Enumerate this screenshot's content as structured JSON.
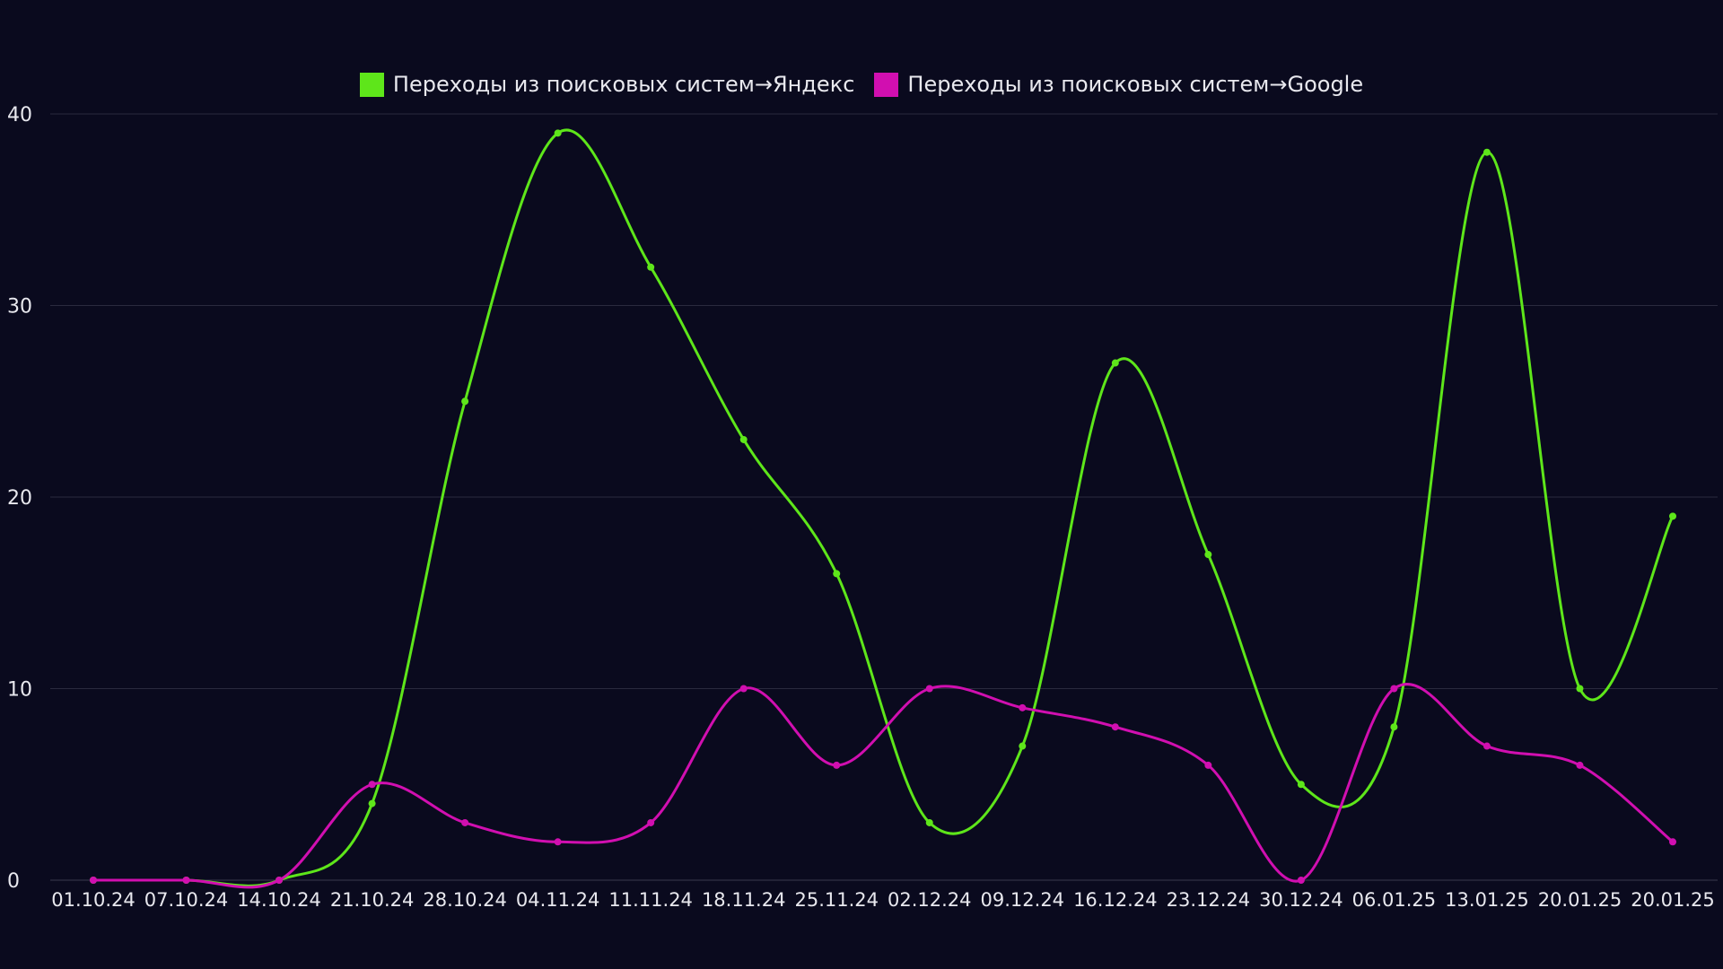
{
  "chart_data": {
    "type": "line",
    "title": "",
    "xlabel": "",
    "ylabel": "",
    "categories": [
      "01.10.24",
      "07.10.24",
      "14.10.24",
      "21.10.24",
      "28.10.24",
      "04.11.24",
      "11.11.24",
      "18.11.24",
      "25.11.24",
      "02.12.24",
      "09.12.24",
      "16.12.24",
      "23.12.24",
      "30.12.24",
      "06.01.25",
      "13.01.25",
      "20.01.25",
      "20.01.25"
    ],
    "ylim": [
      0,
      40
    ],
    "yticks": [
      0,
      10,
      20,
      30,
      40
    ],
    "ytick_labels": [
      "0",
      "10",
      "20",
      "30",
      "40"
    ],
    "grid": true,
    "legend_position": "top-center",
    "series": [
      {
        "name": "Переходы из поисковых систем→Яндекс",
        "color": "#5ee61a",
        "values": [
          0,
          0,
          0,
          4,
          25,
          39,
          32,
          23,
          16,
          3,
          7,
          27,
          17,
          5,
          8,
          38,
          10,
          19
        ]
      },
      {
        "name": "Переходы из поисковых систем→Google",
        "color": "#d10fb0",
        "values": [
          0,
          0,
          0,
          5,
          3,
          2,
          3,
          10,
          6,
          10,
          9,
          8,
          6,
          0,
          10,
          7,
          6,
          2
        ]
      }
    ]
  }
}
